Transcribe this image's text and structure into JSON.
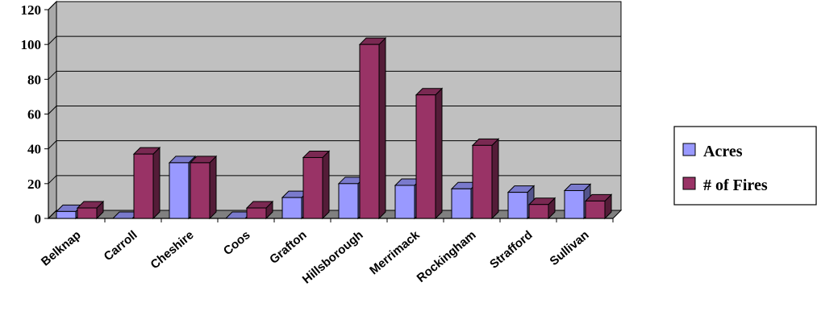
{
  "chart_data": {
    "type": "bar",
    "categories": [
      "Belknap",
      "Carroll",
      "Cheshire",
      "Coos",
      "Grafton",
      "Hillsborough",
      "Merrimack",
      "Rockingham",
      "Strafford",
      "Sullivan"
    ],
    "series": [
      {
        "name": "Acres",
        "values": [
          4,
          0,
          32,
          0,
          12,
          20,
          19,
          17,
          15,
          16
        ],
        "color": "#9999ff"
      },
      {
        "name": "# of Fires",
        "values": [
          6,
          37,
          32,
          6,
          35,
          100,
          71,
          42,
          8,
          10
        ],
        "color": "#993366"
      }
    ],
    "ylim": [
      0,
      120
    ],
    "yticks": [
      0,
      20,
      40,
      60,
      80,
      100,
      120
    ],
    "grid": true,
    "plot_background": "#c0c0c0",
    "three_d": true,
    "legend_position": "right"
  }
}
